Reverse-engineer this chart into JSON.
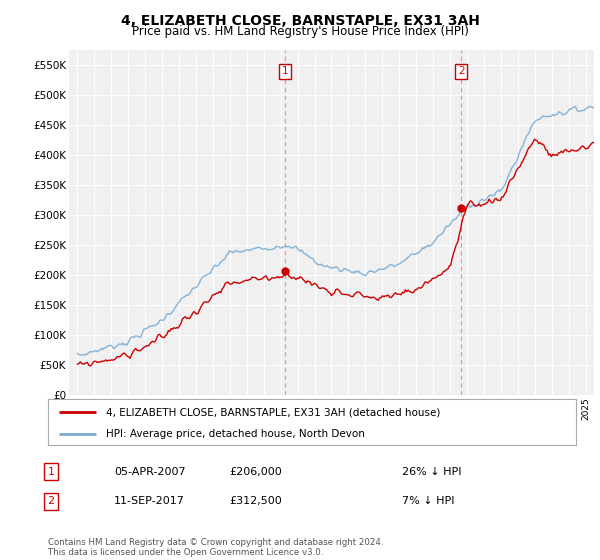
{
  "title": "4, ELIZABETH CLOSE, BARNSTAPLE, EX31 3AH",
  "subtitle": "Price paid vs. HM Land Registry's House Price Index (HPI)",
  "legend_line1": "4, ELIZABETH CLOSE, BARNSTAPLE, EX31 3AH (detached house)",
  "legend_line2": "HPI: Average price, detached house, North Devon",
  "transaction1_date": "05-APR-2007",
  "transaction1_price": "£206,000",
  "transaction1_hpi": "26% ↓ HPI",
  "transaction2_date": "11-SEP-2017",
  "transaction2_price": "£312,500",
  "transaction2_hpi": "7% ↓ HPI",
  "footer": "Contains HM Land Registry data © Crown copyright and database right 2024.\nThis data is licensed under the Open Government Licence v3.0.",
  "hpi_color": "#7aadd4",
  "price_color": "#cc0000",
  "background_color": "#f0f0f0",
  "ylim": [
    0,
    575000
  ],
  "yticks": [
    0,
    50000,
    100000,
    150000,
    200000,
    250000,
    300000,
    350000,
    400000,
    450000,
    500000,
    550000
  ],
  "xlim_start": 1994.5,
  "xlim_end": 2025.5,
  "t1_x": 2007.25,
  "t1_y": 206000,
  "t2_x": 2017.67,
  "t2_y": 312500
}
